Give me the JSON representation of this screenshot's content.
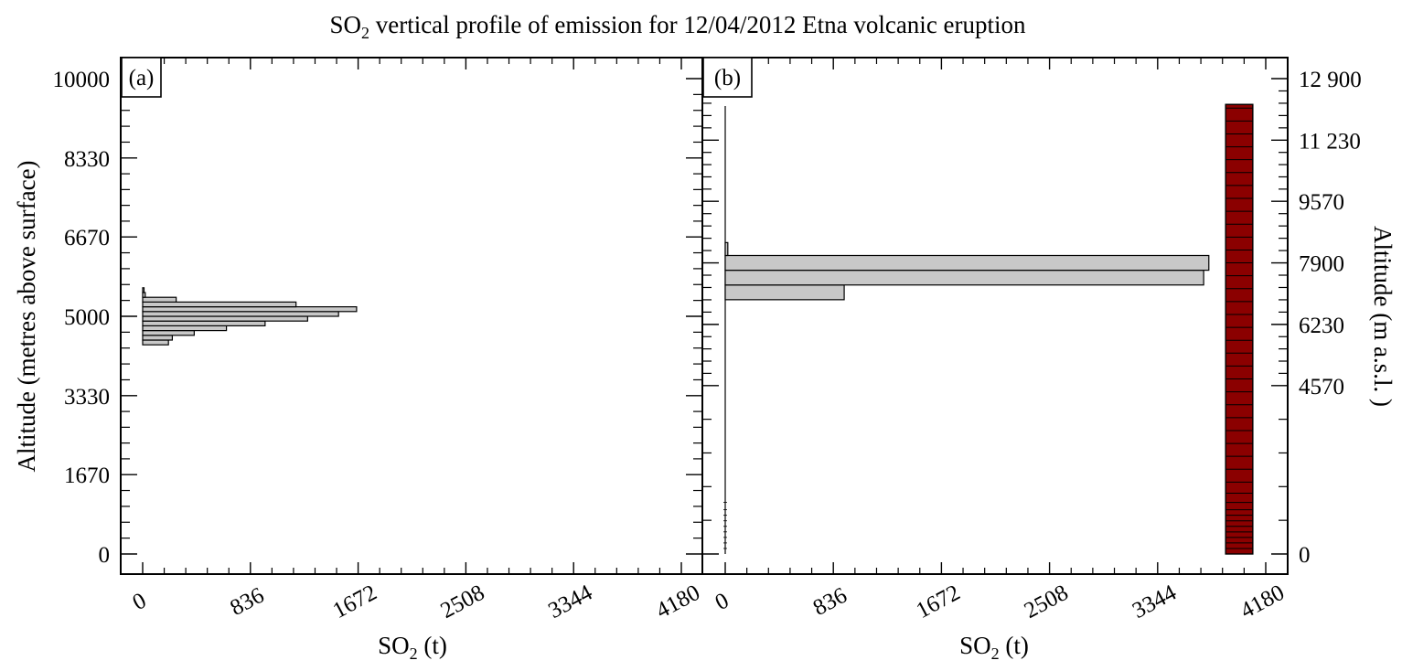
{
  "title": {
    "prefix": "SO",
    "sub": "2",
    "rest": " vertical profile of emission for 12/04/2012 Etna volcanic eruption"
  },
  "chart_data": [
    {
      "type": "bar",
      "orientation": "horizontal",
      "panel_label": "(a)",
      "xlabel": {
        "prefix": "SO",
        "sub": "2",
        "rest": " (t)"
      },
      "ylabel": "Altitude (metres above surface)",
      "xlim": [
        0,
        4180
      ],
      "ylim": [
        0,
        10000
      ],
      "x_ticks": [
        "0",
        "836",
        "1672",
        "2508",
        "3344",
        "4180"
      ],
      "y_ticks": [
        "0",
        "1670",
        "3330",
        "5000",
        "6670",
        "8330",
        "10000"
      ],
      "bin_height": 100,
      "bar_color": "#c8c8c8",
      "bars": [
        {
          "y0": 4400,
          "y1": 4500,
          "value": 200
        },
        {
          "y0": 4500,
          "y1": 4600,
          "value": 230
        },
        {
          "y0": 4600,
          "y1": 4700,
          "value": 400
        },
        {
          "y0": 4700,
          "y1": 4800,
          "value": 650
        },
        {
          "y0": 4800,
          "y1": 4900,
          "value": 950
        },
        {
          "y0": 4900,
          "y1": 5000,
          "value": 1280
        },
        {
          "y0": 5000,
          "y1": 5100,
          "value": 1520
        },
        {
          "y0": 5100,
          "y1": 5200,
          "value": 1660
        },
        {
          "y0": 5200,
          "y1": 5300,
          "value": 1190
        },
        {
          "y0": 5300,
          "y1": 5400,
          "value": 260
        },
        {
          "y0": 5400,
          "y1": 5500,
          "value": 20
        },
        {
          "y0": 5500,
          "y1": 5600,
          "value": 10
        }
      ]
    },
    {
      "type": "bar",
      "orientation": "horizontal",
      "panel_label": "(b)",
      "xlabel": {
        "prefix": "SO",
        "sub": "2",
        "rest": " (t)"
      },
      "ylabel_right": "Altitude (m a.s.l. )",
      "xlim": [
        0,
        4180
      ],
      "ylim": [
        0,
        12900
      ],
      "x_ticks": [
        "0",
        "836",
        "1672",
        "2508",
        "3344",
        "4180"
      ],
      "y_ticks_right": [
        "0",
        "4570",
        "6230",
        "7900",
        "9570",
        "11 230",
        "12 900"
      ],
      "bar_color": "#c8c8c8",
      "bars": [
        {
          "y0": 6900,
          "y1": 7300,
          "value": 920
        },
        {
          "y0": 7300,
          "y1": 7700,
          "value": 3700
        },
        {
          "y0": 7700,
          "y1": 8100,
          "value": 3740
        },
        {
          "y0": 8100,
          "y1": 8450,
          "value": 20
        }
      ],
      "column": {
        "color": "#8b0000",
        "x0": 3870,
        "x1": 4080,
        "y_top": 12200,
        "levels": [
          150,
          300,
          450,
          600,
          750,
          900,
          1050,
          1200,
          1400,
          1650,
          1950,
          2300,
          2650,
          3000,
          3350,
          3700,
          4050,
          4400,
          4750,
          5100,
          5450,
          5800,
          6150,
          6500,
          6850,
          7200,
          7550,
          7900,
          8250,
          8600,
          8950,
          9300,
          9650,
          10000,
          10350,
          10700,
          11050,
          11400,
          11750,
          12100
        ]
      }
    }
  ]
}
